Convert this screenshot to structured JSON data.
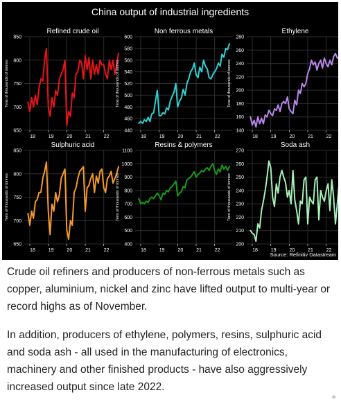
{
  "figure": {
    "title": "China output of industrial ingredients",
    "source": "Source: Refinitiv Datastream",
    "ylabel": "Tens of thousands of tonnes",
    "colors": {
      "background": "#000000",
      "grid": "#2e2e2e",
      "text": "#ffffff"
    }
  },
  "chart_data": [
    {
      "type": "line",
      "title": "Refined crude oil",
      "color": "#e8141a",
      "ylim": [
        650,
        850
      ],
      "yticks": [
        650,
        700,
        750,
        800,
        850
      ],
      "xlim": [
        2017.7,
        2022.95
      ],
      "xticks": [
        18,
        19,
        20,
        21,
        22
      ],
      "ylabel": "Tens of thousands of tonnes",
      "series": [
        {
          "x": [
            2017.9,
            2018.0,
            2018.1,
            2018.2,
            2018.3,
            2018.4,
            2018.5,
            2018.6,
            2018.7,
            2018.8,
            2018.9,
            2019.0,
            2019.1,
            2019.2,
            2019.3,
            2019.4,
            2019.5,
            2019.6,
            2019.7,
            2019.8,
            2019.9,
            2020.0,
            2020.1,
            2020.2,
            2020.3,
            2020.4,
            2020.5,
            2020.6,
            2020.7,
            2020.8,
            2020.9,
            2021.0,
            2021.1,
            2021.2,
            2021.3,
            2021.4,
            2021.5,
            2021.6,
            2021.7,
            2021.8,
            2021.9,
            2022.0,
            2022.1,
            2022.2,
            2022.3,
            2022.4,
            2022.5,
            2022.6,
            2022.7,
            2022.8
          ],
          "values": [
            710,
            690,
            720,
            700,
            725,
            705,
            740,
            760,
            755,
            800,
            825,
            700,
            680,
            720,
            700,
            735,
            725,
            760,
            770,
            780,
            800,
            660,
            690,
            680,
            730,
            720,
            770,
            775,
            800,
            795,
            760,
            810,
            780,
            805,
            760,
            800,
            770,
            790,
            770,
            800,
            790,
            790,
            770,
            760,
            800,
            780,
            800,
            770,
            790,
            815
          ]
        }
      ]
    },
    {
      "type": "line",
      "title": "Non ferrous metals",
      "color": "#2ed1d1",
      "ylim": [
        440,
        600
      ],
      "yticks": [
        440,
        460,
        480,
        500,
        520,
        540,
        560,
        580,
        600
      ],
      "xlim": [
        2017.7,
        2022.95
      ],
      "xticks": [
        18,
        19,
        20,
        21,
        22
      ],
      "ylabel": "Tens of thousands of tonnes",
      "series": [
        {
          "x": [
            2017.9,
            2018.0,
            2018.1,
            2018.2,
            2018.3,
            2018.4,
            2018.5,
            2018.6,
            2018.7,
            2018.8,
            2018.9,
            2019.0,
            2019.1,
            2019.2,
            2019.3,
            2019.4,
            2019.5,
            2019.6,
            2019.7,
            2019.8,
            2019.9,
            2020.0,
            2020.1,
            2020.2,
            2020.3,
            2020.4,
            2020.5,
            2020.6,
            2020.7,
            2020.8,
            2020.9,
            2021.0,
            2021.1,
            2021.2,
            2021.3,
            2021.4,
            2021.5,
            2021.6,
            2021.7,
            2021.8,
            2021.9,
            2022.0,
            2022.1,
            2022.2,
            2022.3,
            2022.4,
            2022.5,
            2022.6,
            2022.7,
            2022.8
          ],
          "values": [
            452,
            455,
            452,
            458,
            455,
            462,
            455,
            468,
            470,
            490,
            508,
            465,
            465,
            470,
            468,
            478,
            475,
            490,
            498,
            505,
            520,
            480,
            490,
            495,
            510,
            500,
            520,
            528,
            540,
            545,
            555,
            535,
            530,
            548,
            540,
            560,
            550,
            545,
            530,
            528,
            535,
            540,
            545,
            555,
            550,
            570,
            565,
            580,
            578,
            588
          ]
        }
      ]
    },
    {
      "type": "line",
      "title": "Ethylene",
      "color": "#bb88ee",
      "ylim": [
        140,
        280
      ],
      "yticks": [
        140,
        160,
        180,
        200,
        220,
        240,
        260,
        280
      ],
      "xlim": [
        2017.7,
        2022.95
      ],
      "xticks": [
        18,
        19,
        20,
        21,
        22
      ],
      "ylabel": "Tens of thousands of tonnes",
      "series": [
        {
          "x": [
            2017.9,
            2018.0,
            2018.1,
            2018.2,
            2018.3,
            2018.4,
            2018.5,
            2018.6,
            2018.7,
            2018.8,
            2018.9,
            2019.0,
            2019.1,
            2019.2,
            2019.3,
            2019.4,
            2019.5,
            2019.6,
            2019.7,
            2019.8,
            2019.9,
            2020.0,
            2020.1,
            2020.2,
            2020.3,
            2020.4,
            2020.5,
            2020.6,
            2020.7,
            2020.8,
            2020.9,
            2021.0,
            2021.1,
            2021.2,
            2021.3,
            2021.4,
            2021.5,
            2021.6,
            2021.7,
            2021.8,
            2021.9,
            2022.0,
            2022.1,
            2022.2,
            2022.3,
            2022.4,
            2022.5,
            2022.6,
            2022.7,
            2022.8
          ],
          "values": [
            160,
            148,
            155,
            145,
            160,
            150,
            158,
            150,
            163,
            160,
            170,
            165,
            162,
            172,
            170,
            178,
            168,
            180,
            183,
            180,
            190,
            172,
            168,
            165,
            185,
            178,
            200,
            195,
            210,
            205,
            210,
            225,
            232,
            245,
            238,
            242,
            230,
            240,
            245,
            233,
            248,
            240,
            235,
            245,
            238,
            250,
            255,
            248,
            250,
            262
          ]
        }
      ]
    },
    {
      "type": "line",
      "title": "Sulphuric acid",
      "color": "#f59a2a",
      "ylim": [
        650,
        850
      ],
      "yticks": [
        650,
        700,
        750,
        800,
        850
      ],
      "xlim": [
        2017.7,
        2022.95
      ],
      "xticks": [
        18,
        19,
        20,
        21,
        22
      ],
      "ylabel": "Tens of thousands of tonnes",
      "series": [
        {
          "x": [
            2017.9,
            2018.0,
            2018.1,
            2018.2,
            2018.3,
            2018.4,
            2018.5,
            2018.6,
            2018.7,
            2018.8,
            2018.9,
            2019.0,
            2019.1,
            2019.2,
            2019.3,
            2019.4,
            2019.5,
            2019.6,
            2019.7,
            2019.8,
            2019.9,
            2020.0,
            2020.1,
            2020.2,
            2020.3,
            2020.4,
            2020.5,
            2020.6,
            2020.7,
            2020.8,
            2020.9,
            2021.0,
            2021.1,
            2021.2,
            2021.3,
            2021.4,
            2021.5,
            2021.6,
            2021.7,
            2021.8,
            2021.9,
            2022.0,
            2022.1,
            2022.2,
            2022.3,
            2022.4,
            2022.5,
            2022.6,
            2022.7,
            2022.8
          ],
          "values": [
            715,
            690,
            720,
            705,
            740,
            745,
            760,
            760,
            790,
            805,
            825,
            720,
            670,
            735,
            720,
            760,
            740,
            755,
            790,
            800,
            810,
            680,
            660,
            700,
            690,
            760,
            770,
            790,
            805,
            810,
            815,
            720,
            770,
            775,
            790,
            800,
            760,
            795,
            780,
            805,
            810,
            770,
            760,
            790,
            795,
            805,
            780,
            790,
            800,
            815
          ]
        }
      ]
    },
    {
      "type": "line",
      "title": "Resins & polymers",
      "color": "#1a9a1a",
      "ylim": [
        400,
        1100
      ],
      "yticks": [
        400,
        500,
        600,
        700,
        800,
        900,
        1000,
        1100
      ],
      "xlim": [
        2017.7,
        2022.95
      ],
      "xticks": [
        18,
        19,
        20,
        21,
        22
      ],
      "ylabel": "Tens of thousands of tonnes",
      "series": [
        {
          "x": [
            2017.9,
            2018.0,
            2018.1,
            2018.2,
            2018.3,
            2018.4,
            2018.5,
            2018.6,
            2018.7,
            2018.8,
            2018.9,
            2019.0,
            2019.1,
            2019.2,
            2019.3,
            2019.4,
            2019.5,
            2019.6,
            2019.7,
            2019.8,
            2019.9,
            2020.0,
            2020.1,
            2020.2,
            2020.3,
            2020.4,
            2020.5,
            2020.6,
            2020.7,
            2020.8,
            2020.9,
            2021.0,
            2021.1,
            2021.2,
            2021.3,
            2021.4,
            2021.5,
            2021.6,
            2021.7,
            2021.8,
            2021.9,
            2022.0,
            2022.1,
            2022.2,
            2022.3,
            2022.4,
            2022.5,
            2022.6,
            2022.7,
            2022.8
          ],
          "values": [
            740,
            700,
            710,
            700,
            720,
            710,
            740,
            750,
            740,
            760,
            780,
            760,
            730,
            780,
            770,
            800,
            790,
            820,
            830,
            850,
            870,
            760,
            780,
            790,
            830,
            820,
            880,
            890,
            900,
            920,
            940,
            900,
            920,
            930,
            950,
            940,
            960,
            970,
            950,
            980,
            1000,
            950,
            920,
            960,
            940,
            990,
            960,
            980,
            950,
            980
          ]
        }
      ]
    },
    {
      "type": "line",
      "title": "Soda ash",
      "color": "#a8f0b8",
      "ylim": [
        200,
        270
      ],
      "yticks": [
        200,
        210,
        220,
        230,
        240,
        250,
        260,
        270
      ],
      "xlim": [
        2017.7,
        2022.95
      ],
      "xticks": [
        18,
        19,
        20,
        21,
        22
      ],
      "ylabel": "Tens of thousands of tonnes",
      "series": [
        {
          "x": [
            2017.9,
            2018.0,
            2018.1,
            2018.2,
            2018.3,
            2018.4,
            2018.5,
            2018.6,
            2018.7,
            2018.8,
            2018.9,
            2019.0,
            2019.1,
            2019.2,
            2019.3,
            2019.4,
            2019.5,
            2019.6,
            2019.7,
            2019.8,
            2019.9,
            2020.0,
            2020.1,
            2020.2,
            2020.3,
            2020.4,
            2020.5,
            2020.6,
            2020.7,
            2020.8,
            2020.9,
            2021.0,
            2021.1,
            2021.2,
            2021.3,
            2021.4,
            2021.5,
            2021.6,
            2021.7,
            2021.8,
            2021.9,
            2022.0,
            2022.1,
            2022.2,
            2022.3,
            2022.4,
            2022.5,
            2022.6,
            2022.7,
            2022.8
          ],
          "values": [
            210,
            208,
            207,
            202,
            215,
            212,
            225,
            232,
            240,
            250,
            262,
            257,
            235,
            228,
            245,
            238,
            250,
            255,
            250,
            246,
            235,
            240,
            230,
            255,
            233,
            225,
            215,
            232,
            230,
            248,
            250,
            215,
            235,
            232,
            230,
            248,
            250,
            218,
            240,
            235,
            232,
            240,
            245,
            225,
            248,
            235,
            215,
            230,
            245,
            268
          ]
        }
      ]
    }
  ],
  "article": {
    "paragraph_1": "Crude oil refiners and producers of non-ferrous metals such as copper, aluminium, nickel and zinc have lifted output to multi-year or record highs as of November.",
    "paragraph_2": "In addition, producers of ethylene, polymers, resins, sulphuric acid and soda ash - all used in the manufacturing of electronics, machinery and other finished products - have also aggressively increased output since late 2022.",
    "corner_mark": "+"
  }
}
